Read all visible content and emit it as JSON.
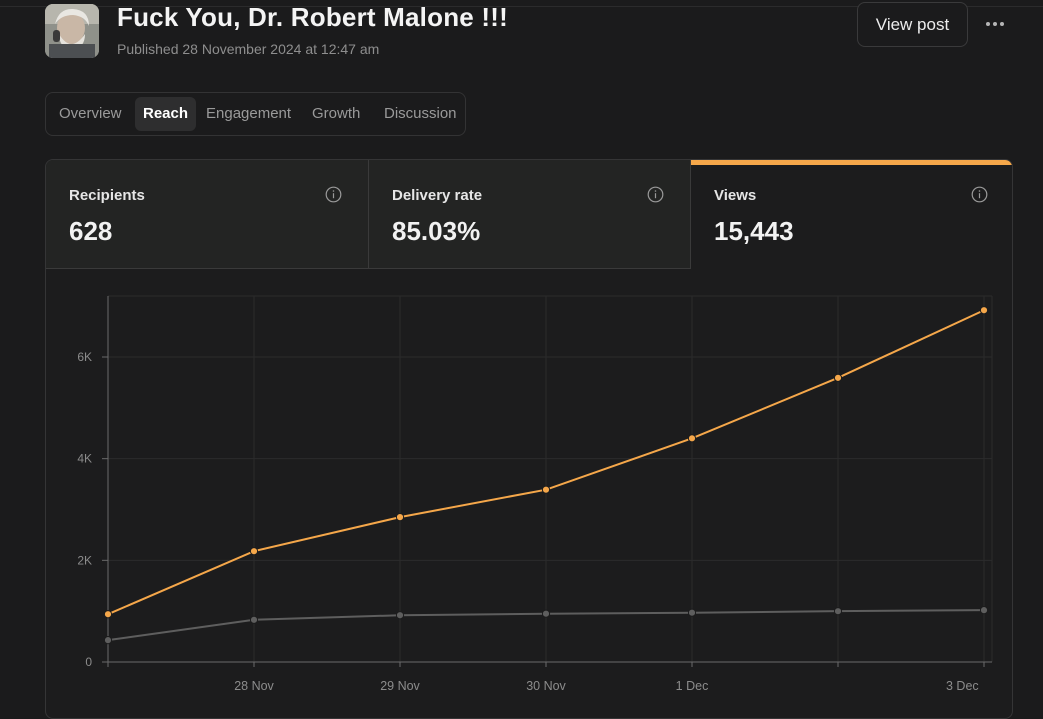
{
  "post": {
    "title": "Fuck You, Dr. Robert Malone !!!",
    "meta": "Published 28 November 2024 at 12:47 am",
    "view_label": "View post",
    "more_icon": "more-horizontal-icon"
  },
  "tabs": [
    {
      "label": "Overview",
      "active": false
    },
    {
      "label": "Reach",
      "active": true
    },
    {
      "label": "Engagement",
      "active": false
    },
    {
      "label": "Growth",
      "active": false
    },
    {
      "label": "Discussion",
      "active": false
    }
  ],
  "stats": [
    {
      "label": "Recipients",
      "value": "628",
      "icon": "info-icon"
    },
    {
      "label": "Delivery rate",
      "value": "85.03%",
      "icon": "info-icon"
    },
    {
      "label": "Views",
      "value": "15,443",
      "icon": "info-icon",
      "selected": true
    }
  ],
  "colors": {
    "accent": "#f5a74a",
    "secondary_series": "#5e5e5e",
    "background": "#1b1b1c"
  },
  "chart_data": {
    "type": "line",
    "x_tick_labels": [
      "28 Nov",
      "29 Nov",
      "30 Nov",
      "1 Dec",
      "3 Dec"
    ],
    "x": [
      "27 Nov",
      "28 Nov",
      "29 Nov",
      "30 Nov",
      "1 Dec",
      "2 Dec",
      "3 Dec"
    ],
    "y_tick_labels": [
      "0",
      "2K",
      "4K",
      "6K"
    ],
    "ylim": [
      0,
      7200
    ],
    "grid": true,
    "series": [
      {
        "values": [
          940,
          2180,
          2850,
          3390,
          4400,
          5590,
          6920
        ],
        "color": "#f5a74a"
      },
      {
        "values": [
          430,
          830,
          920,
          950,
          970,
          1000,
          1020
        ],
        "color": "#5e5e5e"
      }
    ]
  }
}
